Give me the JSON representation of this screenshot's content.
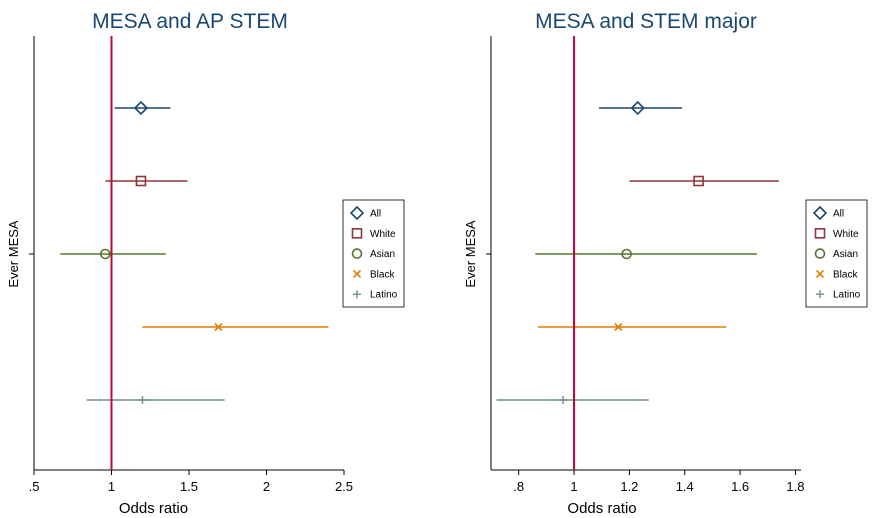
{
  "colors": {
    "All": "#1a476f",
    "White": "#90353b",
    "Asian": "#55752f",
    "Black": "#e37e00",
    "Latino": "#6e8e84",
    "refline": "#c10534",
    "title": "#1a476f"
  },
  "chart_data": [
    {
      "type": "scatter",
      "title": "MESA and AP STEM",
      "xlabel": "Odds ratio",
      "ylabel": "Ever MESA",
      "xlim": [
        0.5,
        2.5
      ],
      "xticks": [
        ".5",
        "1",
        "1.5",
        "2",
        "2.5"
      ],
      "xtick_values": [
        0.5,
        1,
        1.5,
        2,
        2.5
      ],
      "reference_line": 1,
      "legend": "right",
      "series": [
        {
          "name": "All",
          "marker": "diamond",
          "estimate": 1.19,
          "ci": [
            1.02,
            1.38
          ]
        },
        {
          "name": "White",
          "marker": "square",
          "estimate": 1.19,
          "ci": [
            0.96,
            1.49
          ]
        },
        {
          "name": "Asian",
          "marker": "circle",
          "estimate": 0.96,
          "ci": [
            0.67,
            1.35
          ]
        },
        {
          "name": "Black",
          "marker": "x",
          "estimate": 1.69,
          "ci": [
            1.2,
            2.4
          ]
        },
        {
          "name": "Latino",
          "marker": "plus",
          "estimate": 1.2,
          "ci": [
            0.84,
            1.73
          ]
        }
      ]
    },
    {
      "type": "scatter",
      "title": "MESA and STEM major",
      "xlabel": "Odds ratio",
      "ylabel": "Ever MESA",
      "xlim": [
        0.7,
        1.82
      ],
      "xticks": [
        ".8",
        "1",
        "1.2",
        "1.4",
        "1.6",
        "1.8"
      ],
      "xtick_values": [
        0.8,
        1.0,
        1.2,
        1.4,
        1.6,
        1.8
      ],
      "reference_line": 1,
      "legend": "right",
      "series": [
        {
          "name": "All",
          "marker": "diamond",
          "estimate": 1.23,
          "ci": [
            1.09,
            1.39
          ]
        },
        {
          "name": "White",
          "marker": "square",
          "estimate": 1.45,
          "ci": [
            1.2,
            1.74
          ]
        },
        {
          "name": "Asian",
          "marker": "circle",
          "estimate": 1.19,
          "ci": [
            0.86,
            1.66
          ]
        },
        {
          "name": "Black",
          "marker": "x",
          "estimate": 1.16,
          "ci": [
            0.87,
            1.55
          ]
        },
        {
          "name": "Latino",
          "marker": "plus",
          "estimate": 0.96,
          "ci": [
            0.72,
            1.27
          ]
        }
      ]
    }
  ]
}
